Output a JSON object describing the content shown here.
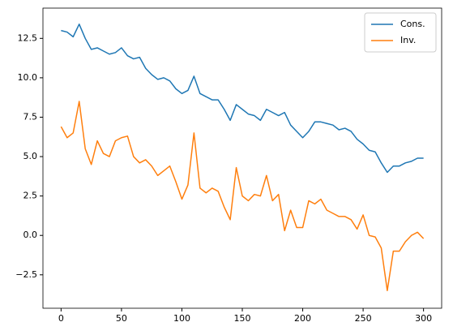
{
  "chart_data": {
    "type": "line",
    "x": [
      0,
      5,
      10,
      15,
      20,
      25,
      30,
      35,
      40,
      45,
      50,
      55,
      60,
      65,
      70,
      75,
      80,
      85,
      90,
      95,
      100,
      105,
      110,
      115,
      120,
      125,
      130,
      135,
      140,
      145,
      150,
      155,
      160,
      165,
      170,
      175,
      180,
      185,
      190,
      195,
      200,
      205,
      210,
      215,
      220,
      225,
      230,
      235,
      240,
      245,
      250,
      255,
      260,
      265,
      270,
      275,
      280,
      285,
      290,
      295,
      300
    ],
    "series": [
      {
        "name": "Cons.",
        "color": "#1f77b4",
        "values": [
          13.0,
          12.9,
          12.6,
          13.4,
          12.5,
          11.8,
          11.9,
          11.7,
          11.5,
          11.6,
          11.9,
          11.4,
          11.2,
          11.3,
          10.6,
          10.2,
          9.9,
          10.0,
          9.8,
          9.3,
          9.0,
          9.2,
          10.1,
          9.0,
          8.8,
          8.6,
          8.6,
          8.0,
          7.3,
          8.3,
          8.0,
          7.7,
          7.6,
          7.3,
          8.0,
          7.8,
          7.6,
          7.8,
          7.0,
          6.6,
          6.2,
          6.6,
          7.2,
          7.2,
          7.1,
          7.0,
          6.7,
          6.8,
          6.6,
          6.1,
          5.8,
          5.4,
          5.3,
          4.6,
          4.0,
          4.4,
          4.4,
          4.6,
          4.7,
          4.9,
          4.9
        ]
      },
      {
        "name": "Inv.",
        "color": "#ff7f0e",
        "values": [
          6.9,
          6.2,
          6.5,
          8.5,
          5.5,
          4.5,
          6.0,
          5.2,
          5.0,
          6.0,
          6.2,
          6.3,
          5.0,
          4.6,
          4.8,
          4.4,
          3.8,
          4.1,
          4.4,
          3.4,
          2.3,
          3.2,
          6.5,
          3.0,
          2.7,
          3.0,
          2.8,
          1.8,
          1.0,
          4.3,
          2.5,
          2.2,
          2.6,
          2.5,
          3.8,
          2.2,
          2.6,
          0.3,
          1.6,
          0.5,
          0.5,
          2.2,
          2.0,
          2.3,
          1.6,
          1.4,
          1.2,
          1.2,
          1.0,
          0.4,
          1.3,
          0.0,
          -0.1,
          -0.8,
          -3.5,
          -1.0,
          -1.0,
          -0.4,
          0.0,
          0.2,
          -0.2
        ]
      }
    ],
    "xlim": [
      -15,
      315
    ],
    "ylim": [
      -4.62,
      14.42
    ],
    "xticks": [
      0,
      50,
      100,
      150,
      200,
      250,
      300
    ],
    "yticks": [
      {
        "value": -2.5,
        "label": "−2.5"
      },
      {
        "value": 0,
        "label": "0.0"
      },
      2.5,
      {
        "value": 5,
        "label": "5.0"
      },
      7.5,
      {
        "value": 10,
        "label": "10.0"
      },
      12.5
    ],
    "grid": false,
    "legend": "upper right"
  }
}
